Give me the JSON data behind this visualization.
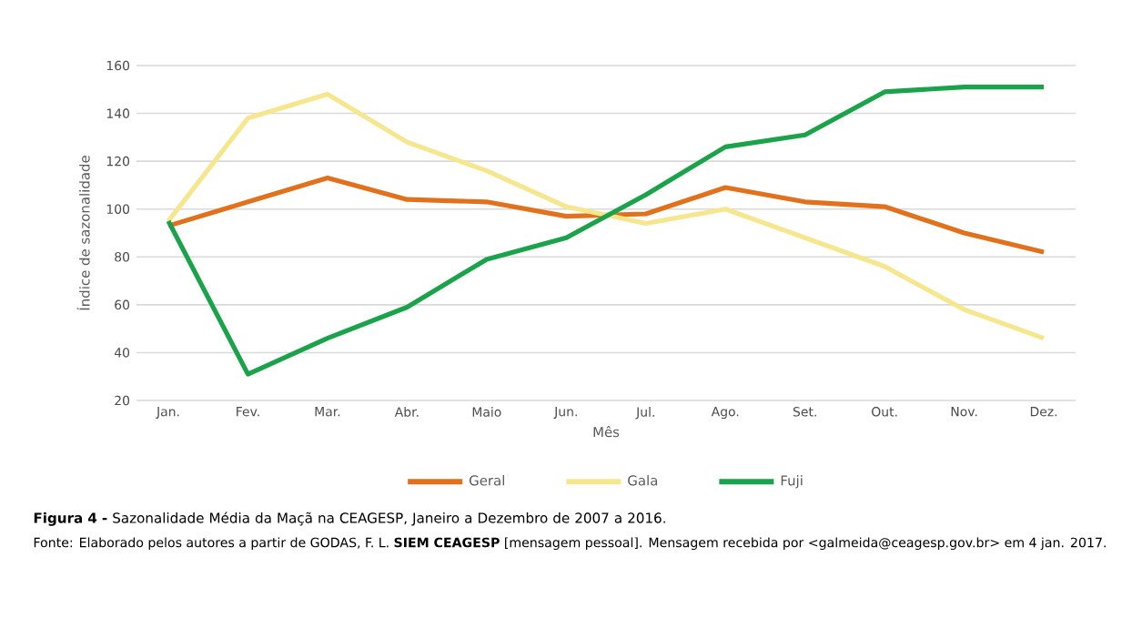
{
  "chart_data": {
    "type": "line",
    "title": "**Figura 4 -** Sazonalidade Média da Maçã na CEAGESP, Janeiro a Dezembro de 2007 a 2016.",
    "xlabel": "Mês",
    "ylabel": "Índice de sazonalidade",
    "categories": [
      "Jan.",
      "Fev.",
      "Mar.",
      "Abr.",
      "Maio",
      "Jun.",
      "Jul.",
      "Ago.",
      "Set.",
      "Out.",
      "Nov.",
      "Dez."
    ],
    "series": [
      {
        "name": "Geral",
        "color": "#e2711d",
        "values": [
          93,
          103,
          113,
          104,
          103,
          97,
          98,
          109,
          103,
          101,
          90,
          82
        ]
      },
      {
        "name": "Gala",
        "color": "#f6e78f",
        "values": [
          95,
          138,
          148,
          128,
          116,
          101,
          94,
          100,
          88,
          76,
          58,
          46
        ]
      },
      {
        "name": "Fuji",
        "color": "#1aa34a",
        "values": [
          95,
          31,
          46,
          59,
          79,
          88,
          106,
          126,
          131,
          149,
          151,
          151
        ]
      }
    ],
    "ylim": [
      20,
      160
    ],
    "yticks": [
      20,
      40,
      60,
      80,
      100,
      120,
      140,
      160
    ],
    "grid": "y",
    "legend": "bottom",
    "marker": "none",
    "line_style": "solid",
    "annotations": [
      "Fonte: Elaborado pelos autores a partir de GODAS, F. L. **SIEM CEAGESP** [mensagem pessoal]. Mensagem recebida por <galmeida@ceagesp.gov.br> em 4 jan. 2017."
    ]
  }
}
